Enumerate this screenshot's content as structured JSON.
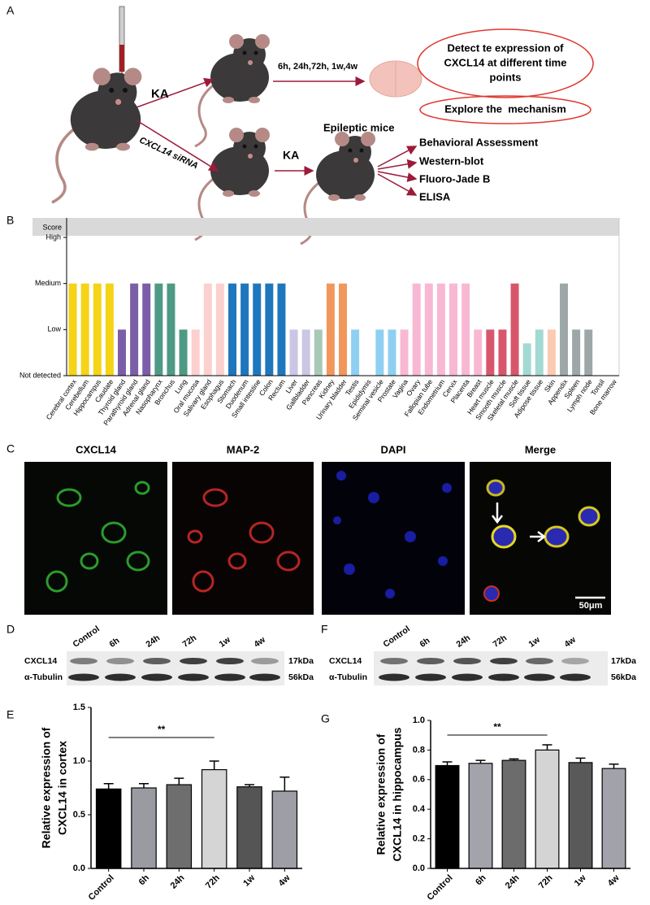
{
  "figure": {
    "panel_labels": [
      "A",
      "B",
      "C",
      "D",
      "E",
      "F",
      "G"
    ],
    "schematic": {
      "injection_1": "KA",
      "time_points": "6h, 24h,72h, 1w,4w",
      "goal_1": [
        "Detect te expression of",
        "CXCL14 at different time",
        "points"
      ],
      "goal_2": "Explore the  mechanism",
      "injection_2": "CXCL14 siRNA",
      "injection_3": "KA",
      "model": "Epileptic mice",
      "assays": [
        "Behavioral Assessment",
        "Western-blot",
        "Fluoro-Jade B",
        "ELISA"
      ]
    },
    "immunofluorescence": {
      "channels": [
        "CXCL14",
        "MAP-2",
        "DAPI",
        "Merge"
      ],
      "scale_bar": "50μm"
    },
    "western_blots": [
      {
        "lanes": [
          "Control",
          "6h",
          "24h",
          "72h",
          "1w",
          "4w"
        ],
        "proteins": [
          "CXCL14",
          "α-Tubulin"
        ],
        "sizes": [
          "17kDa",
          "56kDa"
        ]
      },
      {
        "lanes": [
          "Control",
          "6h",
          "24h",
          "72h",
          "1w",
          "4w"
        ],
        "proteins": [
          "CXCL14",
          "α-Tubulin"
        ],
        "sizes": [
          "17kDa",
          "56kDa"
        ]
      }
    ]
  },
  "chart_data": [
    {
      "type": "bar",
      "ylabel": "Score",
      "categories": [
        "Cerebral cortex",
        "Cerebellum",
        "Hippocampus",
        "Caudate",
        "Thyroid gland",
        "Parathyroid gland",
        "Adrenal gland",
        "Nasopharynx",
        "Bronchus",
        "Lung",
        "Oral mucosa",
        "Salivary gland",
        "Esophagus",
        "Stomach",
        "Duodenum",
        "Small intestine",
        "Colon",
        "Rectum",
        "Liver",
        "Gallbladder",
        "Pancreas",
        "Kidney",
        "Urinary bladder",
        "Testis",
        "Epididymis",
        "Seminal vesicle",
        "Prostate",
        "Vagina",
        "Ovary",
        "Fallopian tube",
        "Endometrium",
        "Cervix",
        "Placenta",
        "Breast",
        "Heart muscle",
        "Smooth muscle",
        "Skeletal muscle",
        "Soft tissue",
        "Adipose tissue",
        "Skin",
        "Appendix",
        "Spleen",
        "Lymph node",
        "Tonsil",
        "Bone marrow"
      ],
      "values": [
        2,
        2,
        2,
        2,
        1,
        2,
        2,
        2,
        2,
        1,
        1,
        2,
        2,
        2,
        2,
        2,
        2,
        2,
        1,
        1,
        1,
        2,
        2,
        1,
        0,
        1,
        1,
        1,
        2,
        2,
        2,
        2,
        2,
        1,
        1,
        1,
        2,
        0.7,
        1,
        1,
        2,
        1,
        1,
        0,
        0
      ],
      "colors": [
        "#f5d317",
        "#f5d317",
        "#f5d317",
        "#f5d317",
        "#7b5ea7",
        "#7b5ea7",
        "#7b5ea7",
        "#4e9a85",
        "#4e9a85",
        "#4e9a85",
        "#fbd0cf",
        "#fbd0cf",
        "#fbd0cf",
        "#1e77bd",
        "#1e77bd",
        "#1e77bd",
        "#1e77bd",
        "#1e77bd",
        "#cbc6e4",
        "#cbc6e4",
        "#a7c9b6",
        "#f2975b",
        "#f2975b",
        "#8fd0f2",
        "#8fd0f2",
        "#8fd0f2",
        "#8fd0f2",
        "#f8b8d4",
        "#f8b8d4",
        "#f8b8d4",
        "#f8b8d4",
        "#f8b8d4",
        "#f8b8d4",
        "#f8b8d4",
        "#d8566b",
        "#d8566b",
        "#d8566b",
        "#a3d9d3",
        "#a3d9d3",
        "#fbcab2",
        "#9da7a8",
        "#9da7a8",
        "#9da7a8",
        "#9da7a8",
        "#9da7a8"
      ],
      "ylim": [
        0,
        3
      ],
      "yticks": [
        {
          "value": 0,
          "label": "Not detected"
        },
        {
          "value": 1,
          "label": "Low"
        },
        {
          "value": 2,
          "label": "Medium"
        },
        {
          "value": 3,
          "label": "High"
        }
      ]
    },
    {
      "type": "bar",
      "ylabel": [
        "Relative expression of",
        "CXCL14 in cortex"
      ],
      "annotation": "**",
      "categories": [
        "Control",
        "6h",
        "24h",
        "72h",
        "1w",
        "4w"
      ],
      "values": [
        0.74,
        0.75,
        0.78,
        0.92,
        0.76,
        0.72
      ],
      "errors": [
        0.05,
        0.04,
        0.06,
        0.08,
        0.02,
        0.13
      ],
      "colors": [
        "#000000",
        "#9a9aa2",
        "#6e6e6e",
        "#d5d5d5",
        "#555555",
        "#9d9ea6"
      ],
      "ylim": [
        0,
        1.5
      ],
      "yticks": [
        {
          "value": 0,
          "label": "0.0"
        },
        0.5,
        {
          "value": 1,
          "label": "1.0"
        },
        1.5
      ]
    },
    {
      "type": "bar",
      "ylabel": [
        "Relative expression of",
        "CXCL14 in hippocampus"
      ],
      "annotation": "**",
      "categories": [
        "Control",
        "6h",
        "24h",
        "72h",
        "1w",
        "4w"
      ],
      "values": [
        0.695,
        0.71,
        0.73,
        0.8,
        0.715,
        0.675
      ],
      "errors": [
        0.025,
        0.02,
        0.01,
        0.035,
        0.03,
        0.03
      ],
      "colors": [
        "#000000",
        "#a3a3ab",
        "#6c6c6c",
        "#d4d4d4",
        "#595959",
        "#a2a2aa"
      ],
      "ylim": [
        0,
        1
      ],
      "yticks": [
        {
          "value": 0,
          "label": "0.0"
        },
        0.2,
        0.4,
        0.6,
        0.8,
        {
          "value": 1,
          "label": "1.0"
        }
      ]
    }
  ]
}
